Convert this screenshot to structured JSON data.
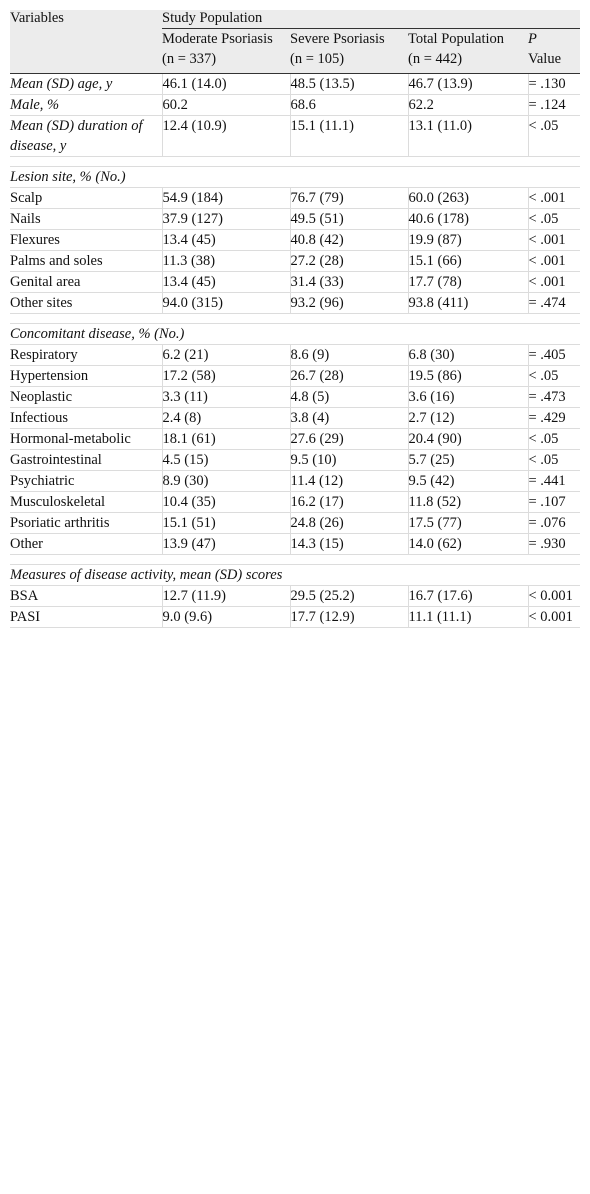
{
  "header": {
    "variables": "Variables",
    "study_population": "Study Population",
    "columns": [
      {
        "line1": "Moderate Psoriasis",
        "line2": "(n = 337)"
      },
      {
        "line1": "Severe Psoriasis",
        "line2": "(n = 105)"
      },
      {
        "line1": "Total Population",
        "line2": "(n = 442)"
      },
      {
        "line1_italic": "P",
        "line2": "Value"
      }
    ]
  },
  "general": [
    {
      "label": "Mean (SD) age, y",
      "moderate": "46.1 (14.0)",
      "severe": "48.5 (13.5)",
      "total": "46.7 (13.9)",
      "p": "= .130"
    },
    {
      "label": "Male, %",
      "moderate": "60.2",
      "severe": "68.6",
      "total": "62.2",
      "p": "= .124"
    },
    {
      "label": "Mean (SD) duration of disease, y",
      "moderate": "12.4 (10.9)",
      "severe": "15.1 (11.1)",
      "total": "13.1 (11.0)",
      "p": "< .05"
    }
  ],
  "lesion_site": {
    "title": "Lesion site, % (No.)",
    "rows": [
      {
        "label": "Scalp",
        "moderate": "54.9 (184)",
        "severe": "76.7 (79)",
        "total": "60.0 (263)",
        "p": "< .001"
      },
      {
        "label": "Nails",
        "moderate": "37.9 (127)",
        "severe": "49.5 (51)",
        "total": "40.6 (178)",
        "p": "< .05"
      },
      {
        "label": "Flexures",
        "moderate": "13.4 (45)",
        "severe": "40.8 (42)",
        "total": "19.9 (87)",
        "p": "< .001"
      },
      {
        "label": "Palms and soles",
        "moderate": "11.3 (38)",
        "severe": "27.2 (28)",
        "total": "15.1 (66)",
        "p": "< .001"
      },
      {
        "label": "Genital area",
        "moderate": "13.4 (45)",
        "severe": "31.4 (33)",
        "total": "17.7 (78)",
        "p": "< .001"
      },
      {
        "label": "Other sites",
        "moderate": "94.0 (315)",
        "severe": "93.2 (96)",
        "total": "93.8 (411)",
        "p": "= .474"
      }
    ]
  },
  "concomitant": {
    "title": "Concomitant disease, % (No.)",
    "rows": [
      {
        "label": "Respiratory",
        "moderate": "6.2 (21)",
        "severe": "8.6 (9)",
        "total": "6.8 (30)",
        "p": "= .405"
      },
      {
        "label": "Hypertension",
        "moderate": "17.2 (58)",
        "severe": "26.7 (28)",
        "total": "19.5 (86)",
        "p": "< .05"
      },
      {
        "label": "Neoplastic",
        "moderate": "3.3 (11)",
        "severe": "4.8 (5)",
        "total": "3.6 (16)",
        "p": "= .473"
      },
      {
        "label": "Infectious",
        "moderate": "2.4 (8)",
        "severe": "3.8 (4)",
        "total": "2.7 (12)",
        "p": "= .429"
      },
      {
        "label": "Hormonal-metabolic",
        "moderate": "18.1 (61)",
        "severe": "27.6 (29)",
        "total": "20.4 (90)",
        "p": "< .05"
      },
      {
        "label": "Gastrointestinal",
        "moderate": "4.5 (15)",
        "severe": "9.5 (10)",
        "total": "5.7 (25)",
        "p": "< .05"
      },
      {
        "label": "Psychiatric",
        "moderate": "8.9 (30)",
        "severe": "11.4 (12)",
        "total": "9.5 (42)",
        "p": "= .441"
      },
      {
        "label": "Musculoskeletal",
        "moderate": "10.4 (35)",
        "severe": "16.2 (17)",
        "total": "11.8 (52)",
        "p": "= .107"
      },
      {
        "label": "Psoriatic arthritis",
        "moderate": "15.1 (51)",
        "severe": "24.8 (26)",
        "total": "17.5 (77)",
        "p": "= .076"
      },
      {
        "label": "Other",
        "moderate": "13.9 (47)",
        "severe": "14.3 (15)",
        "total": "14.0 (62)",
        "p": "= .930"
      }
    ]
  },
  "activity": {
    "title": "Measures of disease activity, mean (SD) scores",
    "rows": [
      {
        "label": "BSA",
        "moderate": "12.7 (11.9)",
        "severe": "29.5 (25.2)",
        "total": "16.7 (17.6)",
        "p": "< 0.001"
      },
      {
        "label": "PASI",
        "moderate": "9.0 (9.6)",
        "severe": "17.7 (12.9)",
        "total": "11.1 (11.1)",
        "p": "< 0.001"
      }
    ]
  }
}
